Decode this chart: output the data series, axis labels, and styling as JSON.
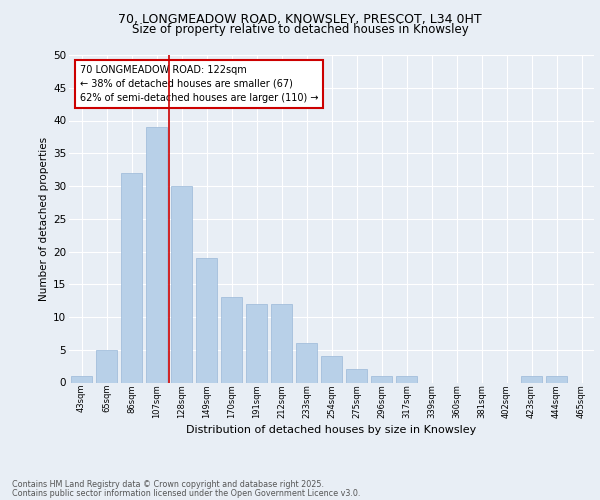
{
  "title_line1": "70, LONGMEADOW ROAD, KNOWSLEY, PRESCOT, L34 0HT",
  "title_line2": "Size of property relative to detached houses in Knowsley",
  "xlabel": "Distribution of detached houses by size in Knowsley",
  "ylabel": "Number of detached properties",
  "categories": [
    "43sqm",
    "65sqm",
    "86sqm",
    "107sqm",
    "128sqm",
    "149sqm",
    "170sqm",
    "191sqm",
    "212sqm",
    "233sqm",
    "254sqm",
    "275sqm",
    "296sqm",
    "317sqm",
    "339sqm",
    "360sqm",
    "381sqm",
    "402sqm",
    "423sqm",
    "444sqm",
    "465sqm"
  ],
  "values": [
    1,
    5,
    32,
    39,
    30,
    19,
    13,
    12,
    12,
    6,
    4,
    2,
    1,
    1,
    0,
    0,
    0,
    0,
    1,
    1,
    0
  ],
  "bar_color": "#b8d0e8",
  "bar_edge_color": "#9ab8d8",
  "annotation_text": "70 LONGMEADOW ROAD: 122sqm\n← 38% of detached houses are smaller (67)\n62% of semi-detached houses are larger (110) →",
  "annotation_box_color": "#ffffff",
  "annotation_box_edge": "#cc0000",
  "vline_color": "#cc0000",
  "ylim": [
    0,
    50
  ],
  "yticks": [
    0,
    5,
    10,
    15,
    20,
    25,
    30,
    35,
    40,
    45,
    50
  ],
  "footer_line1": "Contains HM Land Registry data © Crown copyright and database right 2025.",
  "footer_line2": "Contains public sector information licensed under the Open Government Licence v3.0.",
  "bg_color": "#e8eef5",
  "plot_bg_color": "#e8eef5",
  "grid_color": "#ffffff"
}
